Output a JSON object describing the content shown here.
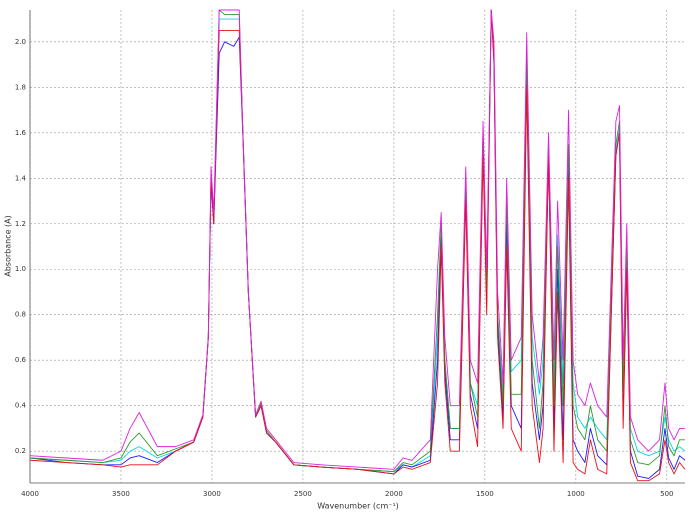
{
  "chart_data": {
    "type": "line",
    "x_label": "Wavenumber (cm⁻¹)",
    "y_label": "Absorbance (A)",
    "xlim": [
      4000,
      400
    ],
    "ylim": [
      0.06,
      2.14
    ],
    "xticks": [
      4000,
      3500,
      3000,
      2500,
      2000,
      1500,
      1000,
      500
    ],
    "yticks": [
      0.2,
      0.4,
      0.6,
      0.8,
      {
        "value": 1,
        "label": "1.0"
      },
      1.2,
      1.4,
      1.6,
      1.8,
      {
        "value": 2,
        "label": "2.0"
      }
    ],
    "grid": true,
    "x": [
      4000,
      3800,
      3600,
      3500,
      3450,
      3400,
      3300,
      3200,
      3100,
      3050,
      3020,
      3005,
      2990,
      2960,
      2930,
      2880,
      2850,
      2830,
      2800,
      2760,
      2730,
      2700,
      2650,
      2550,
      2400,
      2200,
      2000,
      1950,
      1900,
      1800,
      1760,
      1740,
      1720,
      1690,
      1640,
      1605,
      1580,
      1540,
      1510,
      1490,
      1465,
      1450,
      1430,
      1400,
      1380,
      1355,
      1300,
      1270,
      1240,
      1200,
      1180,
      1150,
      1120,
      1100,
      1070,
      1040,
      1015,
      990,
      950,
      920,
      880,
      830,
      780,
      760,
      740,
      720,
      700,
      660,
      600,
      540,
      510,
      490,
      460,
      430,
      400
    ],
    "series": [
      {
        "color": "#00d8e8",
        "values": [
          0.17,
          0.16,
          0.15,
          0.16,
          0.2,
          0.22,
          0.17,
          0.2,
          0.24,
          0.35,
          0.7,
          1.4,
          1.2,
          2.1,
          2.1,
          2.1,
          2.1,
          1.6,
          0.9,
          0.35,
          0.4,
          0.28,
          0.24,
          0.14,
          0.13,
          0.12,
          0.11,
          0.14,
          0.13,
          0.18,
          0.7,
          1.18,
          0.6,
          0.3,
          0.3,
          1.38,
          0.5,
          0.4,
          1.58,
          0.9,
          2.14,
          1.94,
          0.8,
          0.45,
          1.25,
          0.55,
          0.6,
          1.9,
          0.7,
          0.45,
          0.6,
          1.55,
          0.5,
          1.15,
          0.5,
          1.5,
          0.5,
          0.35,
          0.3,
          0.35,
          0.3,
          0.25,
          1.52,
          1.62,
          0.5,
          1.1,
          0.3,
          0.2,
          0.18,
          0.2,
          0.35,
          0.25,
          0.2,
          0.22,
          0.2
        ]
      },
      {
        "color": "#1a1aff",
        "values": [
          0.17,
          0.15,
          0.14,
          0.14,
          0.17,
          0.18,
          0.15,
          0.2,
          0.24,
          0.35,
          0.7,
          1.38,
          1.2,
          1.95,
          2.0,
          1.98,
          2.02,
          1.58,
          0.9,
          0.35,
          0.4,
          0.28,
          0.24,
          0.14,
          0.13,
          0.12,
          0.1,
          0.14,
          0.13,
          0.16,
          0.6,
          1.15,
          0.55,
          0.25,
          0.25,
          1.35,
          0.45,
          0.3,
          1.55,
          0.85,
          2.14,
          1.92,
          0.75,
          0.35,
          1.2,
          0.4,
          0.3,
          1.85,
          0.5,
          0.25,
          0.4,
          1.5,
          0.3,
          1.0,
          0.25,
          1.45,
          0.25,
          0.2,
          0.15,
          0.3,
          0.18,
          0.14,
          1.5,
          1.6,
          0.35,
          1.05,
          0.2,
          0.09,
          0.08,
          0.12,
          0.3,
          0.17,
          0.12,
          0.18,
          0.16
        ]
      },
      {
        "color": "#2a9a2a",
        "values": [
          0.17,
          0.16,
          0.15,
          0.17,
          0.24,
          0.28,
          0.18,
          0.21,
          0.24,
          0.35,
          0.7,
          1.42,
          1.22,
          2.14,
          2.12,
          2.12,
          2.12,
          1.6,
          0.9,
          0.35,
          0.41,
          0.29,
          0.24,
          0.14,
          0.13,
          0.12,
          0.11,
          0.15,
          0.14,
          0.2,
          0.8,
          1.2,
          0.6,
          0.3,
          0.3,
          1.4,
          0.5,
          0.35,
          1.6,
          0.9,
          2.14,
          1.95,
          0.8,
          0.4,
          1.3,
          0.45,
          0.45,
          1.95,
          0.6,
          0.3,
          0.5,
          1.55,
          0.4,
          1.1,
          0.4,
          1.55,
          0.4,
          0.3,
          0.25,
          0.4,
          0.25,
          0.2,
          1.55,
          1.65,
          0.45,
          1.1,
          0.25,
          0.15,
          0.14,
          0.18,
          0.4,
          0.22,
          0.18,
          0.25,
          0.25
        ]
      },
      {
        "color": "#e8101a",
        "values": [
          0.16,
          0.15,
          0.14,
          0.13,
          0.14,
          0.14,
          0.14,
          0.2,
          0.24,
          0.35,
          0.7,
          1.4,
          1.2,
          2.05,
          2.05,
          2.05,
          2.05,
          1.6,
          0.9,
          0.35,
          0.4,
          0.28,
          0.24,
          0.14,
          0.13,
          0.12,
          0.1,
          0.13,
          0.12,
          0.15,
          0.5,
          1.1,
          0.5,
          0.2,
          0.2,
          1.3,
          0.4,
          0.22,
          1.5,
          0.8,
          2.14,
          1.9,
          0.7,
          0.3,
          1.1,
          0.3,
          0.2,
          1.8,
          0.4,
          0.15,
          0.3,
          1.5,
          0.2,
          0.9,
          0.15,
          1.4,
          0.15,
          0.12,
          0.1,
          0.25,
          0.12,
          0.1,
          1.5,
          1.6,
          0.3,
          1.0,
          0.15,
          0.07,
          0.07,
          0.1,
          0.25,
          0.15,
          0.1,
          0.15,
          0.12
        ]
      },
      {
        "color": "#e020e0",
        "values": [
          0.18,
          0.17,
          0.16,
          0.2,
          0.3,
          0.37,
          0.22,
          0.22,
          0.25,
          0.36,
          0.7,
          1.45,
          1.25,
          2.14,
          2.14,
          2.14,
          2.14,
          1.6,
          0.9,
          0.36,
          0.42,
          0.3,
          0.25,
          0.15,
          0.14,
          0.13,
          0.12,
          0.17,
          0.16,
          0.25,
          1.0,
          1.25,
          0.7,
          0.4,
          0.4,
          1.45,
          0.6,
          0.5,
          1.65,
          1.0,
          2.14,
          2.0,
          0.9,
          0.5,
          1.4,
          0.6,
          0.7,
          2.04,
          0.8,
          0.5,
          0.7,
          1.6,
          0.6,
          1.3,
          0.6,
          1.7,
          0.6,
          0.45,
          0.4,
          0.5,
          0.4,
          0.35,
          1.65,
          1.72,
          0.6,
          1.2,
          0.35,
          0.25,
          0.2,
          0.25,
          0.5,
          0.3,
          0.25,
          0.3,
          0.3
        ]
      }
    ]
  }
}
